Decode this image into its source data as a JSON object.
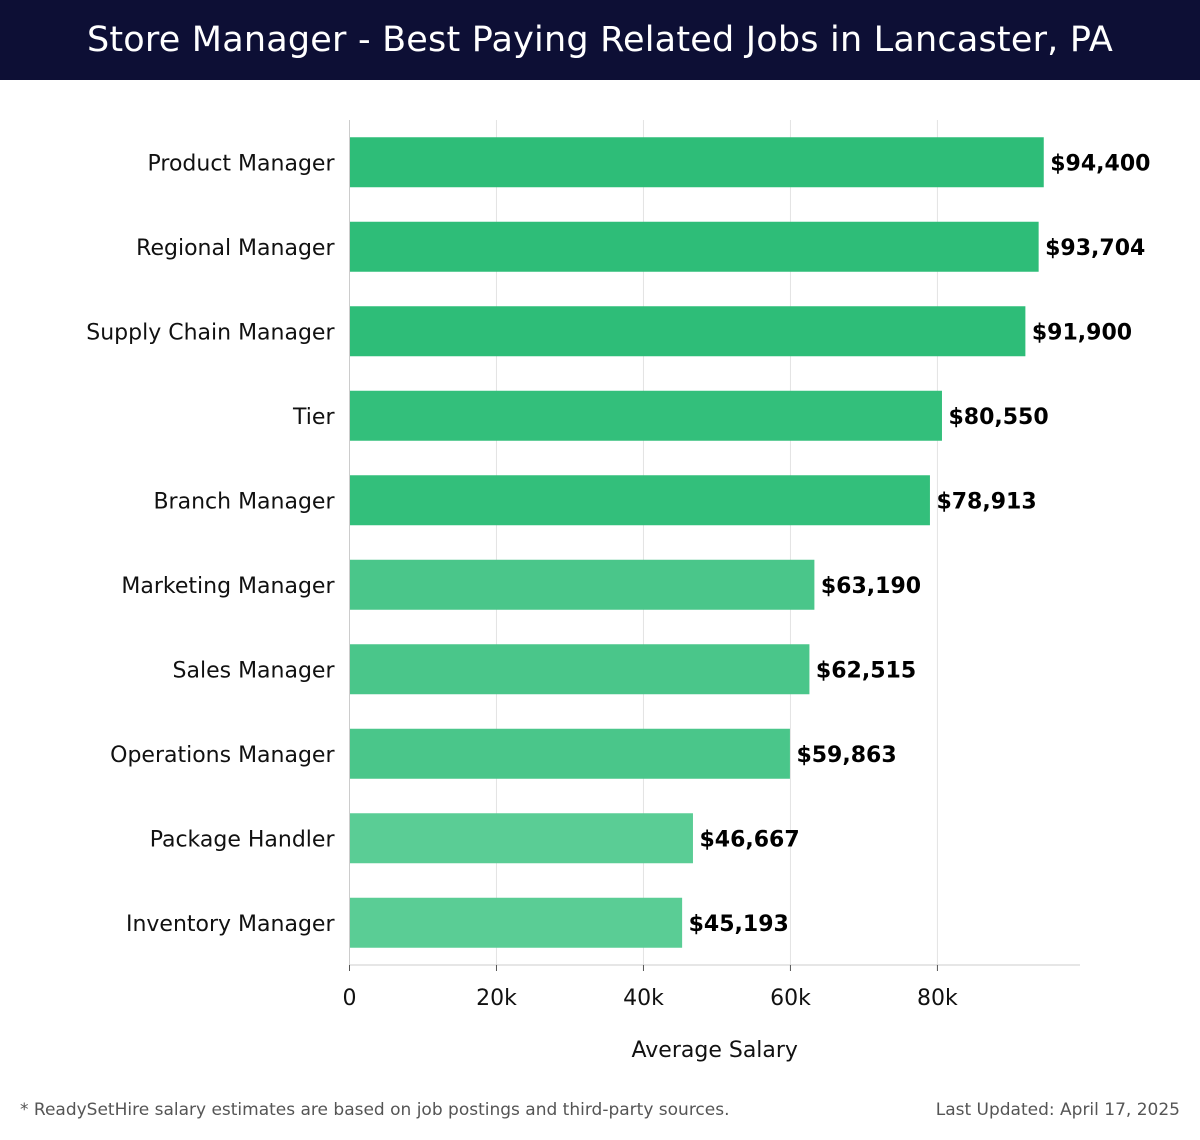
{
  "header": {
    "title": "Store Manager - Best Paying Related Jobs in Lancaster, PA"
  },
  "chart_data": {
    "type": "bar",
    "orientation": "horizontal",
    "title": "Store Manager - Best Paying Related Jobs in Lancaster, PA",
    "xlabel": "Average Salary",
    "ylabel": "",
    "xlim": [
      0,
      99400
    ],
    "xticks": [
      0,
      20000,
      40000,
      60000,
      80000
    ],
    "xtick_labels": [
      "0",
      "20k",
      "40k",
      "60k",
      "80k"
    ],
    "grid": true,
    "categories": [
      "Product Manager",
      "Regional Manager",
      "Supply Chain Manager",
      "Tier",
      "Branch Manager",
      "Marketing Manager",
      "Sales Manager",
      "Operations Manager",
      "Package Handler",
      "Inventory Manager"
    ],
    "values": [
      94400,
      93704,
      91900,
      80550,
      78913,
      63190,
      62515,
      59863,
      46667,
      45193
    ],
    "value_labels": [
      "$94,400",
      "$93,704",
      "$91,900",
      "$80,550",
      "$78,913",
      "$63,190",
      "$62,515",
      "$59,863",
      "$46,667",
      "$45,193"
    ],
    "colors": [
      "#2ebd78",
      "#2ebd78",
      "#2ebd78",
      "#33bf7b",
      "#33bf7b",
      "#4ac68a",
      "#4ac68a",
      "#4ac68a",
      "#5acd95",
      "#5acd95"
    ]
  },
  "footer": {
    "note": "* ReadySetHire salary estimates are based on job postings and third-party sources.",
    "updated": "Last Updated: April 17, 2025"
  },
  "colors": {
    "header_bg": "#0d0f35",
    "grid": "#e3e3e3",
    "axis": "#cccccc"
  }
}
